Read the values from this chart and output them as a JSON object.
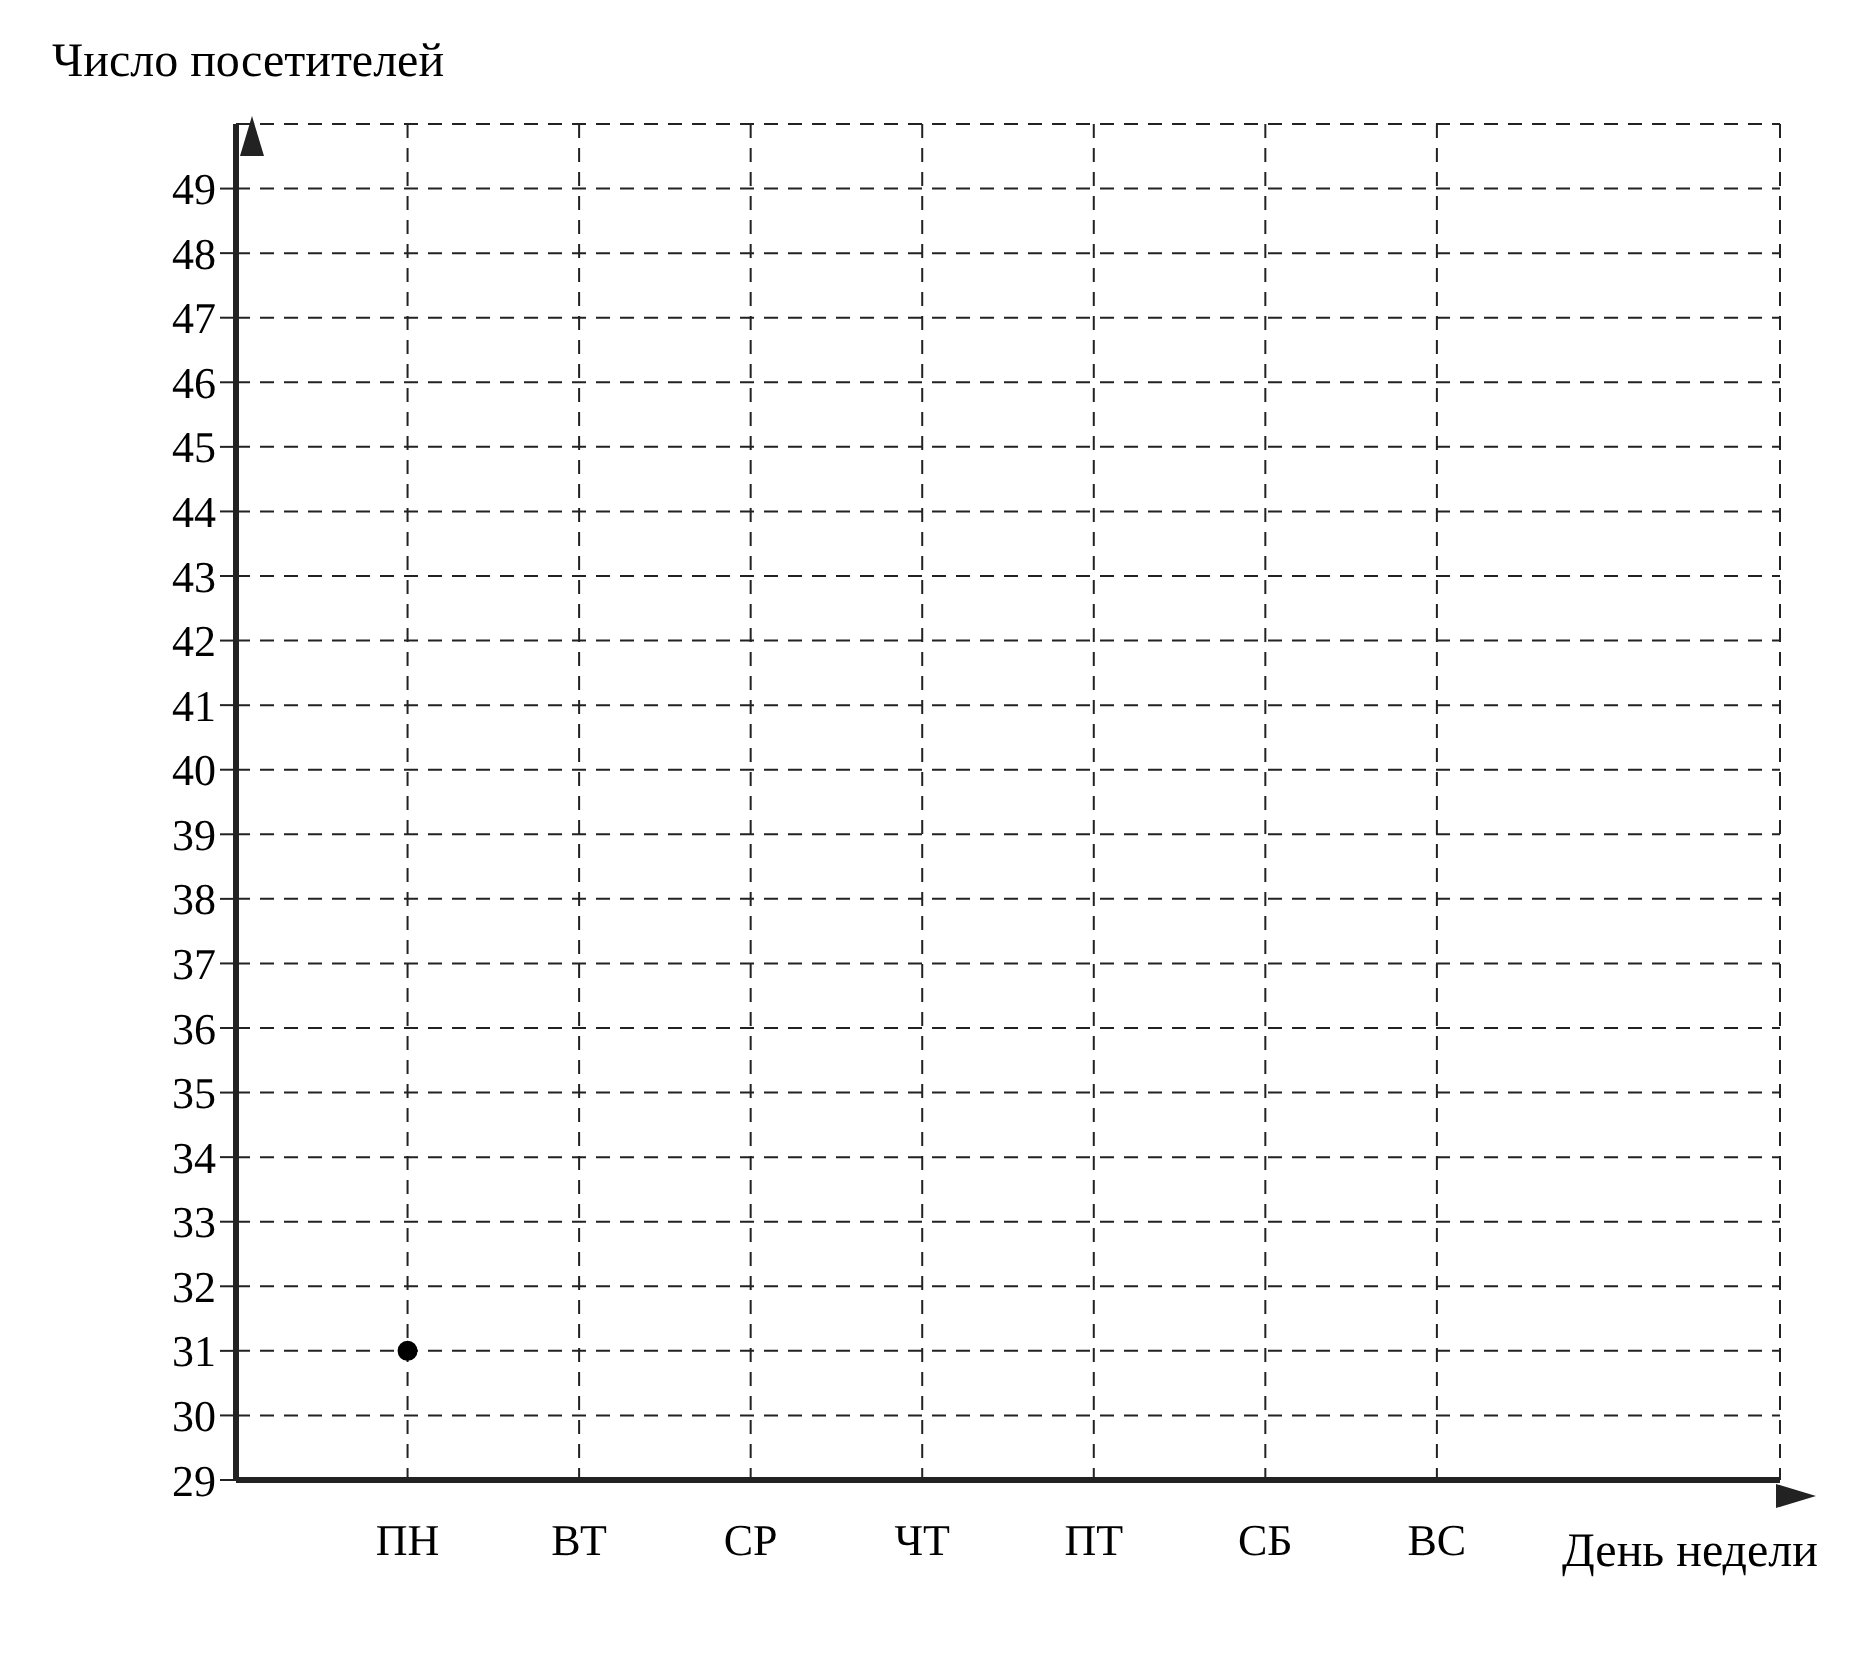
{
  "chart_data": {
    "type": "scatter",
    "xlabel": "День недели",
    "ylabel": "Число посетителей",
    "categories": [
      "ПН",
      "ВТ",
      "СР",
      "ЧТ",
      "ПТ",
      "СБ",
      "ВС"
    ],
    "values": [
      31,
      null,
      null,
      null,
      null,
      null,
      null
    ],
    "color": "#000000",
    "marker": "circle",
    "ylim": [
      29,
      50
    ],
    "yticks": [
      29,
      30,
      31,
      32,
      33,
      34,
      35,
      36,
      37,
      38,
      39,
      40,
      41,
      42,
      43,
      44,
      45,
      46,
      47,
      48,
      49
    ],
    "grid": true
  }
}
